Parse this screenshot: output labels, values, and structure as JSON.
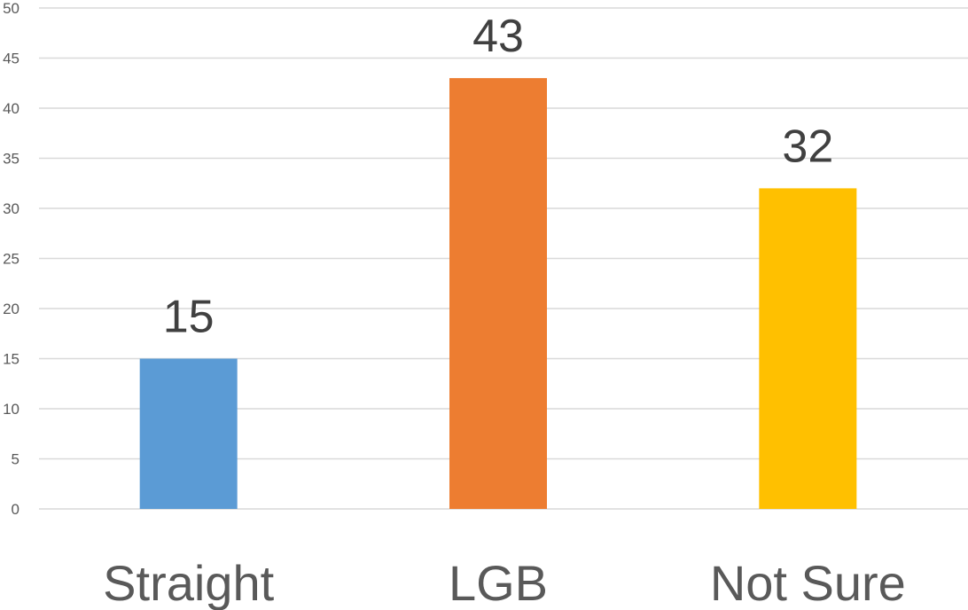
{
  "chart_data": {
    "type": "bar",
    "categories": [
      "Straight",
      "LGB",
      "Not Sure"
    ],
    "values": [
      15,
      43,
      32
    ],
    "colors": [
      "#5b9bd5",
      "#ed7d31",
      "#ffc000"
    ],
    "data_labels": [
      "15",
      "43",
      "32"
    ],
    "title": "",
    "xlabel": "",
    "ylabel": "",
    "ylim": [
      0,
      50
    ],
    "yticks": [
      0,
      5,
      10,
      15,
      20,
      25,
      30,
      35,
      40,
      45,
      50
    ],
    "grid": true,
    "legend": "none"
  }
}
